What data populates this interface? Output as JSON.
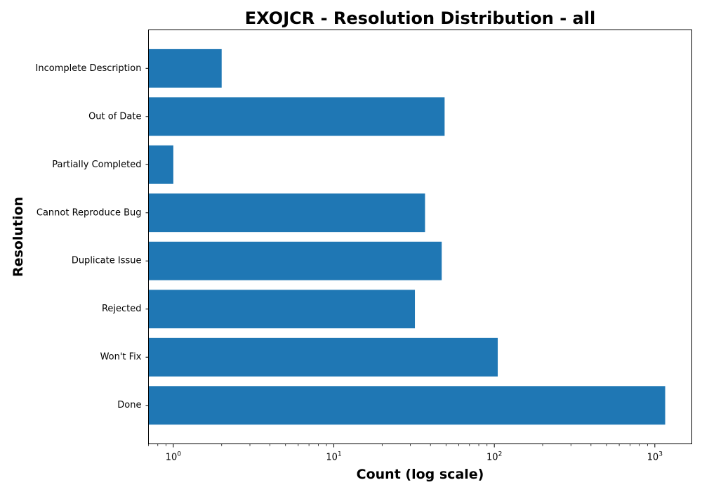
{
  "chart_data": {
    "type": "bar",
    "orientation": "horizontal",
    "title": "EXOJCR - Resolution Distribution - all",
    "xlabel": "Count (log scale)",
    "ylabel": "Resolution",
    "x_scale": "log",
    "xlim": [
      0.7,
      1700
    ],
    "x_ticks": [
      {
        "value": 1,
        "base": "10",
        "exp": "0"
      },
      {
        "value": 10,
        "base": "10",
        "exp": "1"
      },
      {
        "value": 100,
        "base": "10",
        "exp": "2"
      },
      {
        "value": 1000,
        "base": "10",
        "exp": "3"
      }
    ],
    "categories": [
      "Done",
      "Won't Fix",
      "Rejected",
      "Duplicate Issue",
      "Cannot Reproduce Bug",
      "Partially Completed",
      "Out of Date",
      "Incomplete Description"
    ],
    "values": [
      1160,
      105,
      32,
      47,
      37,
      1,
      49,
      2
    ],
    "bar_color": "#1f77b4",
    "grid": false,
    "legend": false
  }
}
